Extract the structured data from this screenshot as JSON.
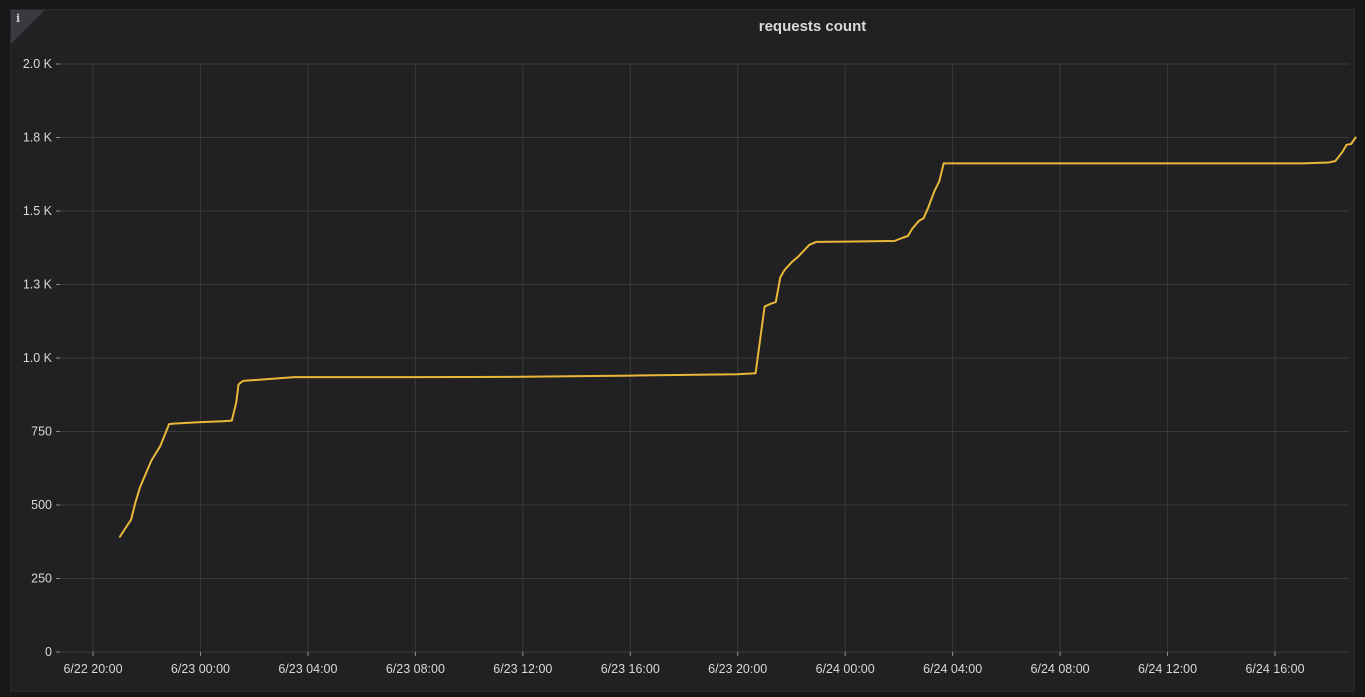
{
  "panel": {
    "title": "requests count",
    "info_icon": "info-icon"
  },
  "chart_data": {
    "type": "line",
    "title": "requests count",
    "xlabel": "",
    "ylabel": "",
    "x_ticks": [
      "6/22 20:00",
      "6/23 00:00",
      "6/23 04:00",
      "6/23 08:00",
      "6/23 12:00",
      "6/23 16:00",
      "6/23 20:00",
      "6/24 00:00",
      "6/24 04:00",
      "6/24 08:00",
      "6/24 12:00",
      "6/24 16:00"
    ],
    "y_ticks": [
      "0",
      "250",
      "500",
      "750",
      "1.0 K",
      "1.3 K",
      "1.5 K",
      "1.8 K",
      "2.0 K"
    ],
    "y_tick_values": [
      0,
      250,
      500,
      750,
      1000,
      1250,
      1500,
      1750,
      2000
    ],
    "ylim": [
      0,
      2000
    ],
    "xlim": [
      "6/22 19:00",
      "6/24 19:20"
    ],
    "grid": true,
    "color": "#eab839",
    "series": [
      {
        "x": [
          "6/22 21:00",
          "6/22 21:12",
          "6/22 21:25",
          "6/22 21:35",
          "6/22 21:45",
          "6/22 22:10",
          "6/22 22:30",
          "6/22 22:50",
          "6/22 23:00",
          "6/23 00:00",
          "6/23 00:50",
          "6/23 01:10",
          "6/23 01:20",
          "6/23 01:25",
          "6/23 01:35",
          "6/23 03:30",
          "6/23 08:00",
          "6/23 12:00",
          "6/23 16:00",
          "6/23 20:00",
          "6/23 20:40",
          "6/23 21:00",
          "6/23 21:15",
          "6/23 21:25",
          "6/23 21:35",
          "6/23 21:45",
          "6/23 22:00",
          "6/23 22:15",
          "6/23 22:40",
          "6/23 22:55",
          "6/23 23:00",
          "6/24 00:00",
          "6/24 01:00",
          "6/24 01:50",
          "6/24 02:10",
          "6/24 02:20",
          "6/24 02:30",
          "6/24 02:45",
          "6/24 02:55",
          "6/24 03:05",
          "6/24 03:20",
          "6/24 03:30",
          "6/24 03:40",
          "6/24 06:00",
          "6/24 12:00",
          "6/24 17:00",
          "6/24 18:00",
          "6/24 18:15",
          "6/24 18:30",
          "6/24 18:40",
          "6/24 18:50",
          "6/24 19:00"
        ],
        "y": [
          392,
          420,
          450,
          510,
          560,
          650,
          700,
          775,
          777,
          782,
          785,
          787,
          850,
          910,
          922,
          935,
          935,
          936,
          940,
          945,
          948,
          1175,
          1185,
          1190,
          1275,
          1300,
          1325,
          1345,
          1385,
          1395,
          1395,
          1396,
          1397,
          1398,
          1410,
          1415,
          1440,
          1467,
          1475,
          1510,
          1570,
          1600,
          1662,
          1662,
          1662,
          1662,
          1665,
          1670,
          1700,
          1725,
          1728,
          1750
        ]
      }
    ]
  }
}
